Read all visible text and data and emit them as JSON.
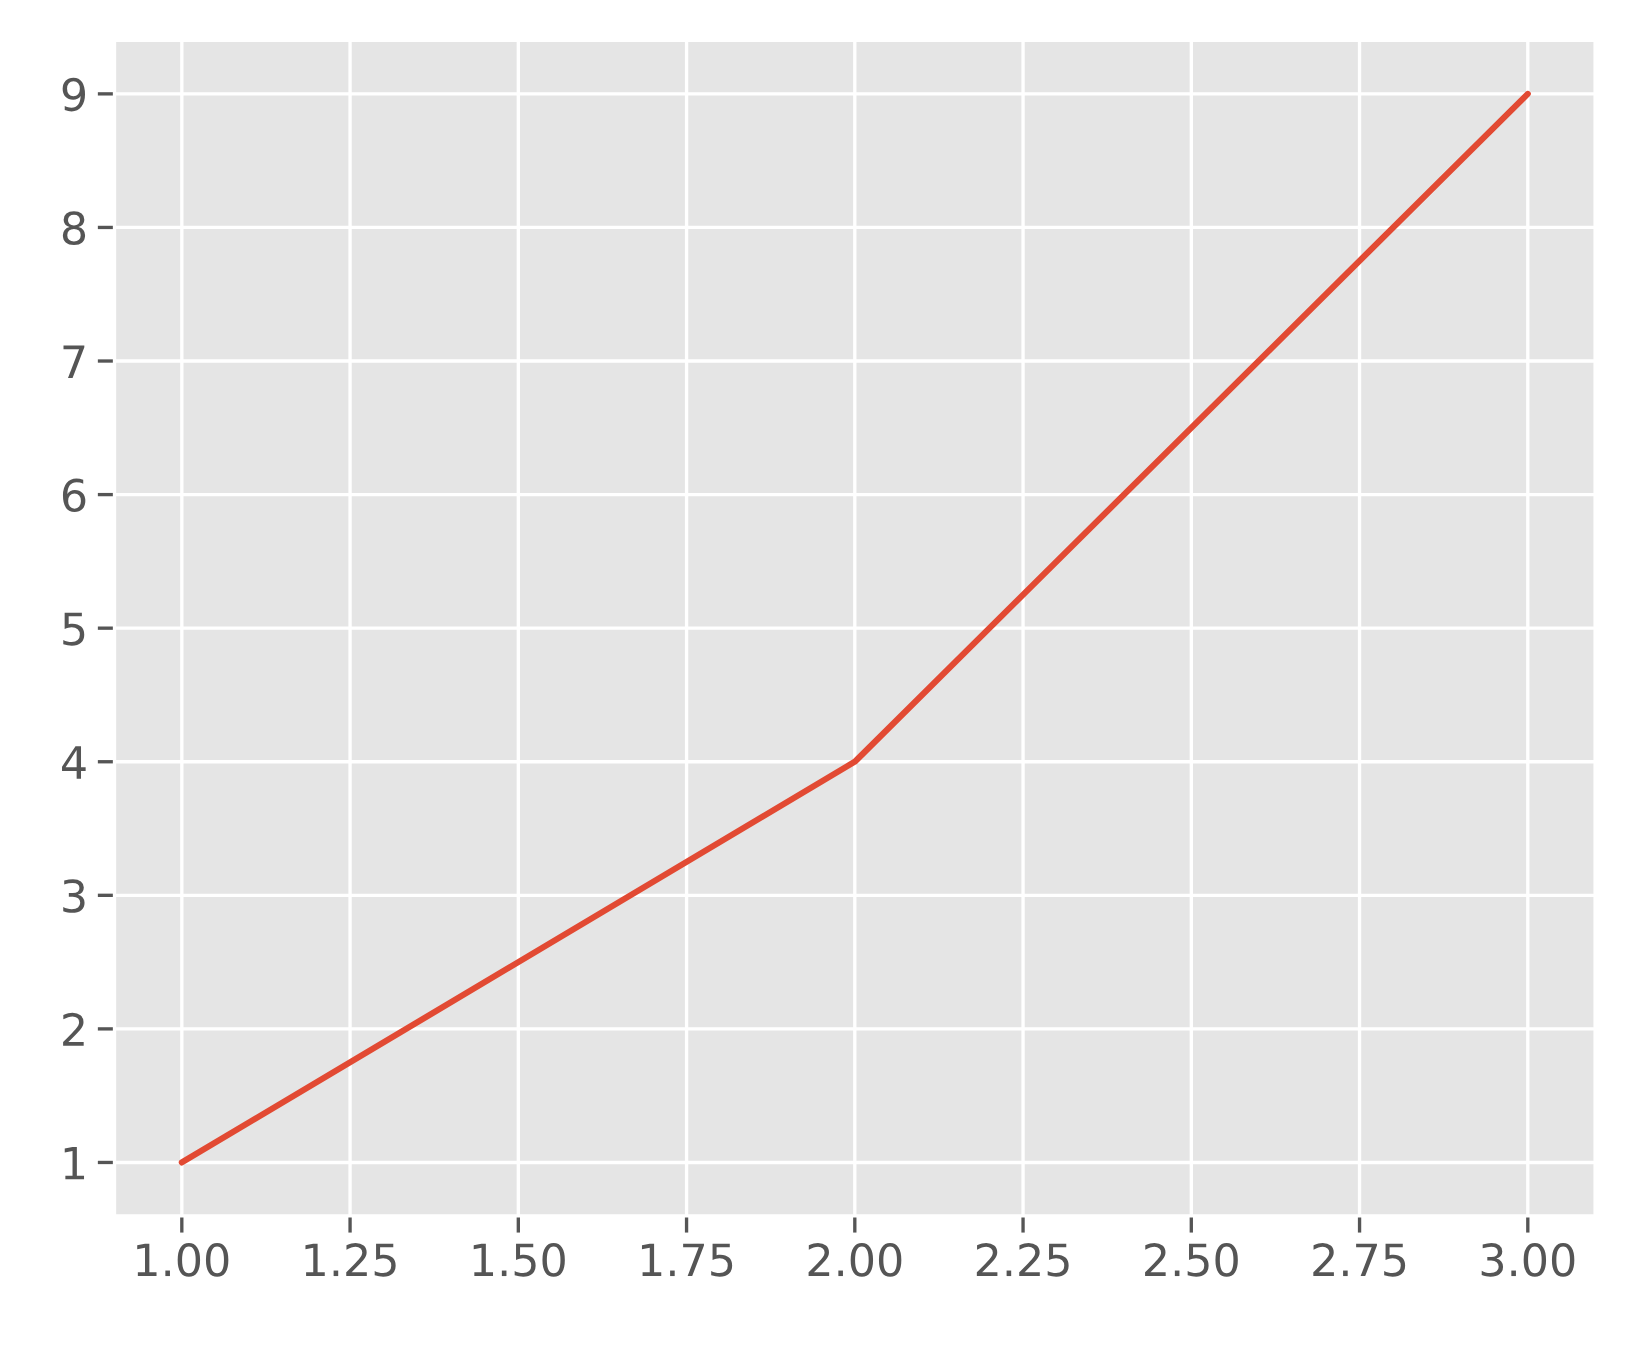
{
  "chart_data": {
    "type": "line",
    "x": [
      1,
      2,
      3
    ],
    "series": [
      {
        "color": "#e24a33",
        "values": [
          1,
          4,
          9
        ]
      }
    ],
    "xlim": [
      0.9,
      3.1
    ],
    "xticks": [
      {
        "value": 1,
        "label": "1.00"
      },
      {
        "value": 1.25,
        "label": "1.25"
      },
      {
        "value": 1.5,
        "label": "1.50"
      },
      {
        "value": 1.75,
        "label": "1.75"
      },
      {
        "value": 2,
        "label": "2.00"
      },
      {
        "value": 2.25,
        "label": "2.25"
      },
      {
        "value": 2.5,
        "label": "2.50"
      },
      {
        "value": 2.75,
        "label": "2.75"
      },
      {
        "value": 3,
        "label": "3.00"
      }
    ],
    "ylim": [
      0.6,
      9.4
    ],
    "yticks": [
      1,
      2,
      3,
      4,
      5,
      6,
      7,
      8,
      9
    ],
    "grid": true,
    "line_style": "solid"
  }
}
